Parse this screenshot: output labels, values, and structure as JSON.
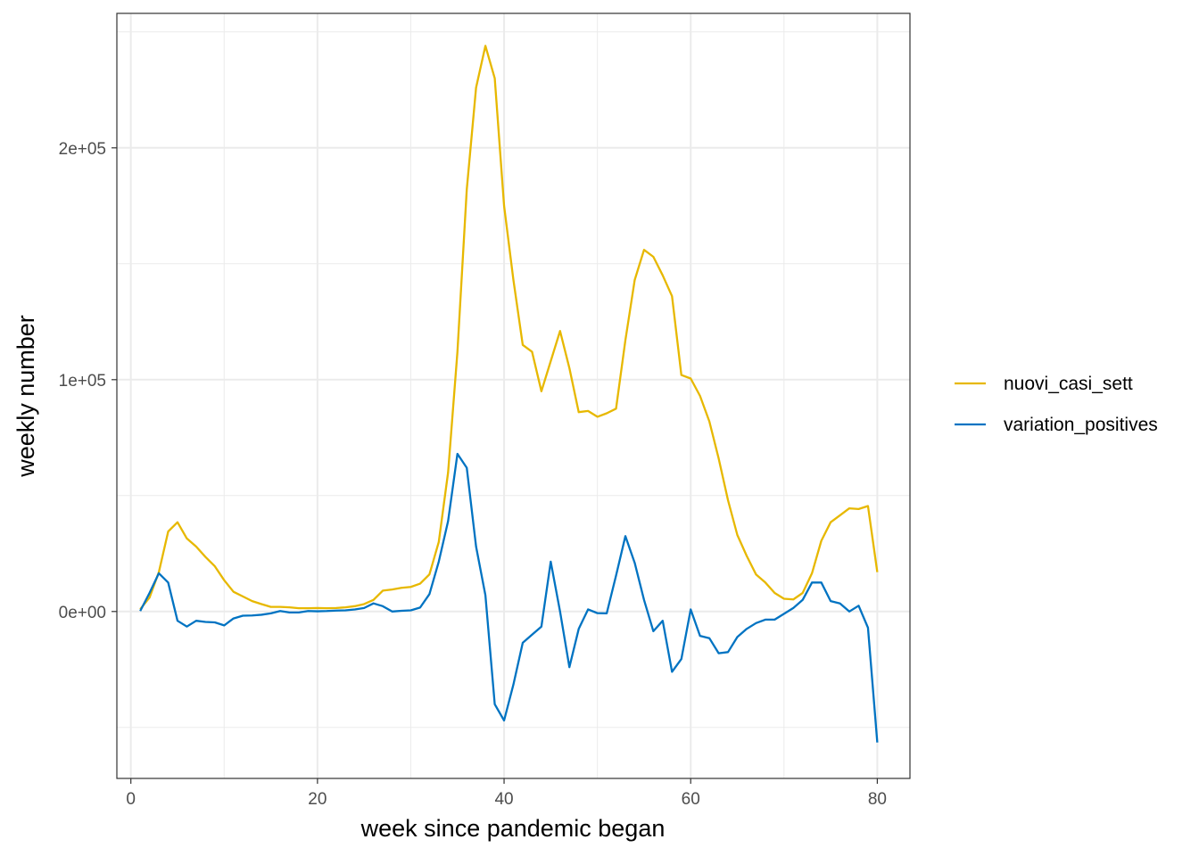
{
  "chart_data": {
    "type": "line",
    "title": "",
    "xlabel": "week since pandemic began",
    "ylabel": "weekly number",
    "xlim": [
      -1.5,
      83.5
    ],
    "ylim": [
      -72000,
      258000
    ],
    "x_ticks": [
      0,
      20,
      40,
      60,
      80
    ],
    "x_tick_labels": [
      "0",
      "20",
      "40",
      "60",
      "80"
    ],
    "y_ticks": [
      0,
      100000,
      200000
    ],
    "y_tick_labels": [
      "0e+00",
      "1e+05",
      "2e+05"
    ],
    "x_minor_ticks": [
      10,
      30,
      50,
      70
    ],
    "y_minor_ticks": [
      -50000,
      50000,
      150000,
      250000
    ],
    "grid": true,
    "legend_position": "right",
    "x": [
      1,
      2,
      3,
      4,
      5,
      6,
      7,
      8,
      9,
      10,
      11,
      12,
      13,
      14,
      15,
      16,
      17,
      18,
      19,
      20,
      21,
      22,
      23,
      24,
      25,
      26,
      27,
      28,
      29,
      30,
      31,
      32,
      33,
      34,
      35,
      36,
      37,
      38,
      39,
      40,
      41,
      42,
      43,
      44,
      45,
      46,
      47,
      48,
      49,
      50,
      51,
      52,
      53,
      54,
      55,
      56,
      57,
      58,
      59,
      60,
      61,
      62,
      63,
      64,
      65,
      66,
      67,
      68,
      69,
      70,
      71,
      72,
      73,
      74,
      75,
      76,
      77,
      78,
      79,
      80
    ],
    "series": [
      {
        "name": "nuovi_casi_sett",
        "color": "#E7B800",
        "values": [
          1000,
          6000,
          17000,
          34500,
          38500,
          31500,
          28000,
          23500,
          19500,
          13500,
          8500,
          6500,
          4500,
          3200,
          2000,
          2000,
          1800,
          1400,
          1400,
          1500,
          1400,
          1500,
          1800,
          2300,
          3200,
          5000,
          9000,
          9500,
          10200,
          10600,
          12000,
          16000,
          30000,
          60000,
          112000,
          182000,
          226000,
          244000,
          230000,
          175000,
          143000,
          115000,
          112000,
          95000,
          108000,
          121000,
          105000,
          86000,
          86500,
          84000,
          85500,
          87500,
          117000,
          143000,
          156000,
          153000,
          145000,
          136000,
          102000,
          100500,
          93000,
          82000,
          66000,
          48000,
          33000,
          24000,
          16000,
          12500,
          8000,
          5500,
          5200,
          8000,
          16500,
          30500,
          38500,
          41500,
          44500,
          44200,
          45500,
          17000
        ]
      },
      {
        "name": "variation_positives",
        "color": "#0073C2",
        "values": [
          200,
          8000,
          16500,
          12500,
          -4000,
          -6500,
          -4000,
          -4500,
          -4700,
          -6000,
          -3000,
          -1800,
          -1700,
          -1400,
          -800,
          200,
          -400,
          -400,
          200,
          100,
          200,
          400,
          500,
          900,
          1500,
          3500,
          2300,
          0,
          300,
          500,
          1700,
          7500,
          21500,
          39000,
          68000,
          62000,
          28000,
          7000,
          -40000,
          -47000,
          -31500,
          -13500,
          -10000,
          -6500,
          21500,
          0,
          -24000,
          -7500,
          900,
          -700,
          -800,
          15500,
          32500,
          21000,
          5000,
          -8500,
          -4000,
          -26000,
          -20500,
          900,
          -10500,
          -11500,
          -18000,
          -17500,
          -11000,
          -7500,
          -5000,
          -3500,
          -3500,
          -1000,
          1500,
          5000,
          12500,
          12500,
          4500,
          3500,
          0,
          2500,
          -7000,
          -56500
        ]
      }
    ]
  }
}
